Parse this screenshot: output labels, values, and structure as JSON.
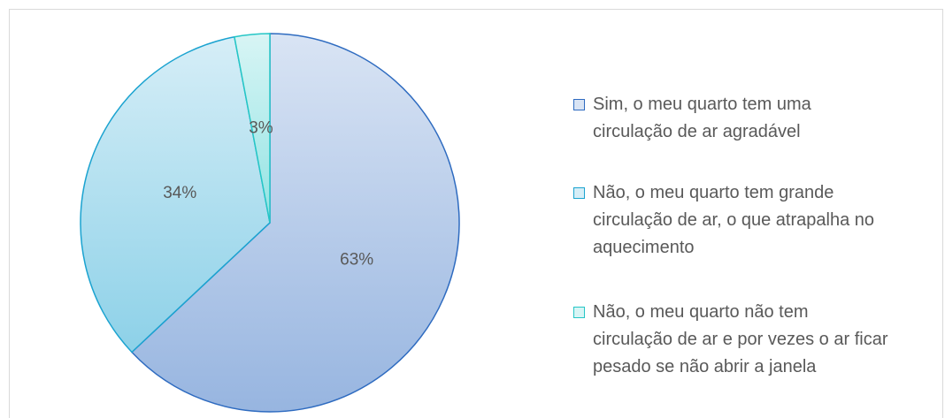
{
  "chart_data": {
    "type": "pie",
    "categories": [
      "Sim, o meu quarto tem uma circulação de ar agradável",
      "Não, o meu quarto tem grande circulação de ar, o que atrapalha no aquecimento",
      "Não, o meu quarto não tem circulação de ar e por vezes o ar ficar pesado se não abrir a janela"
    ],
    "values": [
      63,
      34,
      3
    ],
    "value_labels": [
      "63%",
      "34%",
      "3%"
    ],
    "colors": [
      "#2e6bc0",
      "#1ba3d0",
      "#25c6c6"
    ],
    "legend": "right"
  }
}
